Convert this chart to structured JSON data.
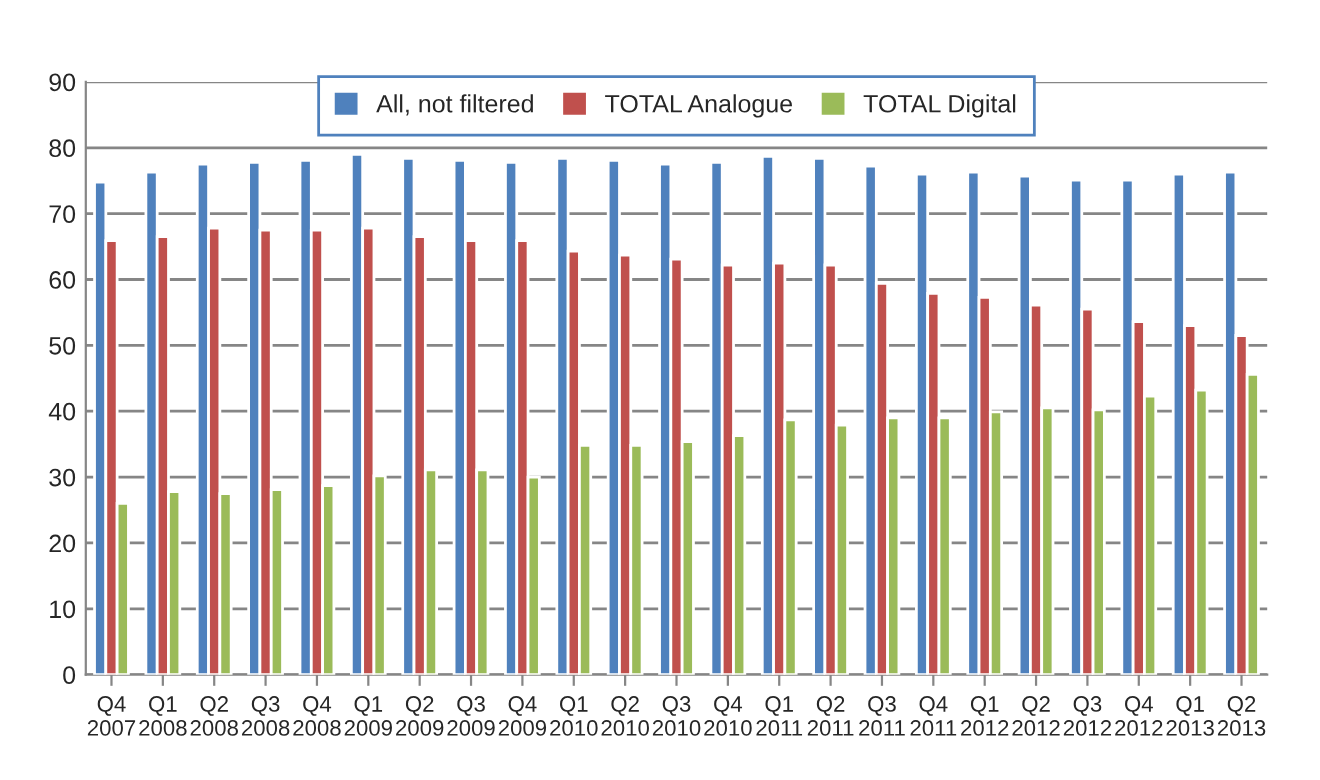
{
  "chart_data": {
    "type": "bar",
    "categories": [
      "Q4\n2007",
      "Q1\n2008",
      "Q2\n2008",
      "Q3\n2008",
      "Q4\n2008",
      "Q1\n2009",
      "Q2\n2009",
      "Q3\n2009",
      "Q4\n2009",
      "Q1\n2010",
      "Q2\n2010",
      "Q3\n2010",
      "Q4\n2010",
      "Q1\n2011",
      "Q2\n2011",
      "Q3\n2011",
      "Q4\n2011",
      "Q1\n2012",
      "Q2\n2012",
      "Q3\n2012",
      "Q4\n2012",
      "Q1\n2013",
      "Q2\n2013"
    ],
    "series": [
      {
        "name": "All, not filtered",
        "color": "#4f81bd",
        "values": [
          74.8,
          76.3,
          77.5,
          77.8,
          78.1,
          79.0,
          78.4,
          78.1,
          77.8,
          78.4,
          78.1,
          77.5,
          77.8,
          78.7,
          78.4,
          77.2,
          76.0,
          76.3,
          75.7,
          75.1,
          75.1,
          76.0,
          76.3
        ]
      },
      {
        "name": "TOTAL Analogue",
        "color": "#c0504d",
        "values": [
          65.9,
          66.5,
          67.8,
          67.5,
          67.5,
          67.8,
          66.5,
          65.9,
          65.9,
          64.3,
          63.7,
          63.1,
          62.2,
          62.5,
          62.2,
          59.4,
          57.9,
          57.3,
          56.1,
          55.5,
          53.6,
          53.0,
          51.5
        ]
      },
      {
        "name": "TOTAL Digital",
        "color": "#9bbb59",
        "values": [
          26.0,
          27.8,
          27.5,
          28.1,
          28.7,
          30.2,
          31.1,
          31.1,
          30.0,
          34.8,
          34.8,
          35.4,
          36.3,
          38.7,
          37.9,
          39.0,
          39.0,
          39.9,
          40.5,
          40.2,
          42.3,
          43.2,
          45.6
        ]
      }
    ],
    "ylim": [
      0,
      90
    ],
    "yticks": [
      0,
      10,
      20,
      30,
      40,
      50,
      60,
      70,
      80,
      90
    ],
    "grid": "y",
    "legend": "top"
  }
}
